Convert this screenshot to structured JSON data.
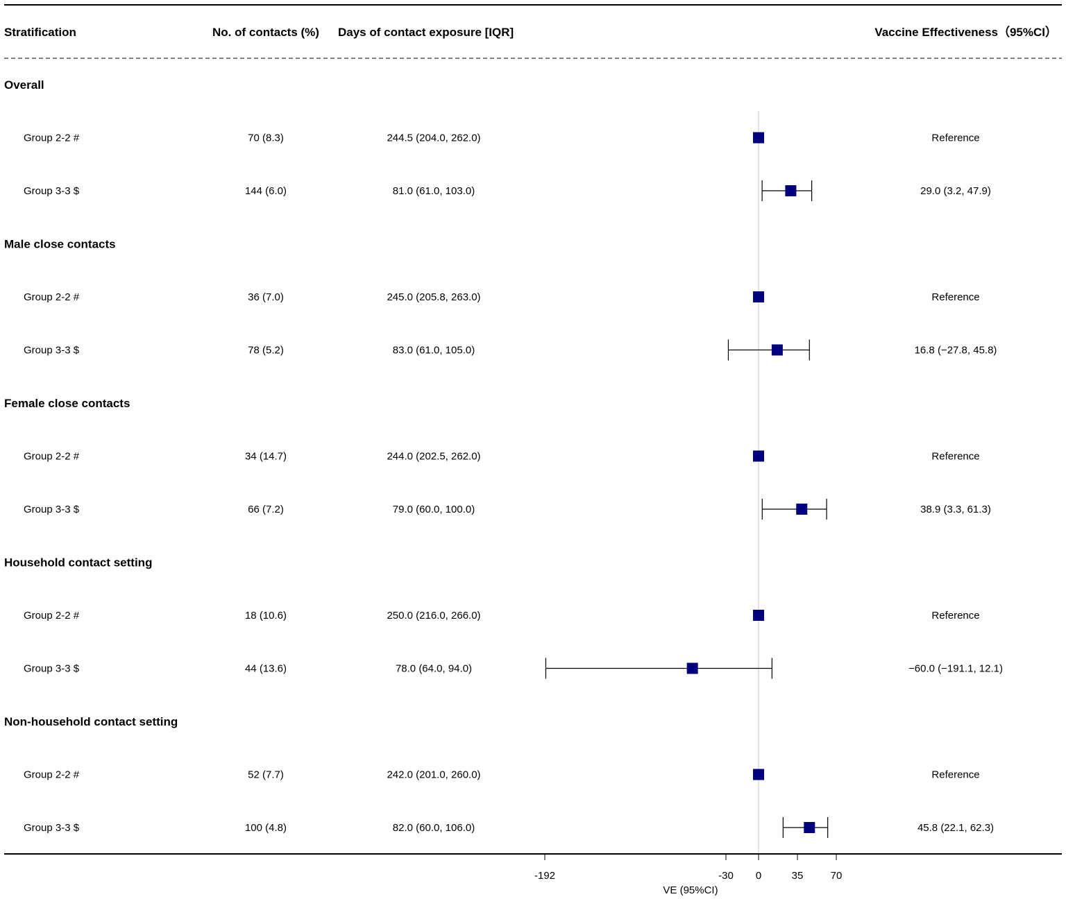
{
  "headers": {
    "stratification": "Stratification",
    "contacts": "No. of contacts (%)",
    "days": "Days of contact exposure [IQR]",
    "ve": "Vaccine Effectiveness（95%CI）"
  },
  "chart_data": {
    "type": "forest",
    "xlabel": "VE (95%CI)",
    "ticks": [
      "-192",
      "-30",
      "0",
      "35",
      "70"
    ],
    "tick_values": [
      -192,
      -30,
      0,
      35,
      70
    ],
    "reference_line": 0,
    "marker_color": "#00007f",
    "sections": [
      {
        "title": "Overall",
        "rows": [
          {
            "label": "Group 2-2 #",
            "contacts": "70 (8.3)",
            "days": "244.5 (204.0, 262.0)",
            "ve_text": "Reference",
            "ve": 0,
            "lower": null,
            "upper": null
          },
          {
            "label": "Group 3-3 $",
            "contacts": "144 (6.0)",
            "days": "81.0 (61.0, 103.0)",
            "ve_text": "29.0 (3.2, 47.9)",
            "ve": 29.0,
            "lower": 3.2,
            "upper": 47.9
          }
        ]
      },
      {
        "title": "Male close contacts",
        "rows": [
          {
            "label": "Group 2-2 #",
            "contacts": "36 (7.0)",
            "days": "245.0 (205.8, 263.0)",
            "ve_text": "Reference",
            "ve": 0,
            "lower": null,
            "upper": null
          },
          {
            "label": "Group 3-3 $",
            "contacts": "78 (5.2)",
            "days": "83.0 (61.0, 105.0)",
            "ve_text": "16.8 (−27.8, 45.8)",
            "ve": 16.8,
            "lower": -27.8,
            "upper": 45.8
          }
        ]
      },
      {
        "title": "Female close contacts",
        "rows": [
          {
            "label": "Group 2-2 #",
            "contacts": "34 (14.7)",
            "days": "244.0 (202.5, 262.0)",
            "ve_text": "Reference",
            "ve": 0,
            "lower": null,
            "upper": null
          },
          {
            "label": "Group 3-3 $",
            "contacts": "66 (7.2)",
            "days": "79.0 (60.0, 100.0)",
            "ve_text": "38.9 (3.3, 61.3)",
            "ve": 38.9,
            "lower": 3.3,
            "upper": 61.3
          }
        ]
      },
      {
        "title": "Household contact setting",
        "rows": [
          {
            "label": "Group 2-2 #",
            "contacts": "18 (10.6)",
            "days": "250.0 (216.0, 266.0)",
            "ve_text": "Reference",
            "ve": 0,
            "lower": null,
            "upper": null
          },
          {
            "label": "Group 3-3 $",
            "contacts": "44 (13.6)",
            "days": "78.0 (64.0, 94.0)",
            "ve_text": "−60.0 (−191.1, 12.1)",
            "ve": -60.0,
            "lower": -191.1,
            "upper": 12.1
          }
        ]
      },
      {
        "title": "Non-household contact setting",
        "rows": [
          {
            "label": "Group 2-2 #",
            "contacts": "52 (7.7)",
            "days": "242.0 (201.0, 260.0)",
            "ve_text": "Reference",
            "ve": 0,
            "lower": null,
            "upper": null
          },
          {
            "label": "Group 3-3 $",
            "contacts": "100 (4.8)",
            "days": "82.0 (60.0, 106.0)",
            "ve_text": "45.8 (22.1, 62.3)",
            "ve": 45.8,
            "lower": 22.1,
            "upper": 62.3
          }
        ]
      }
    ]
  }
}
